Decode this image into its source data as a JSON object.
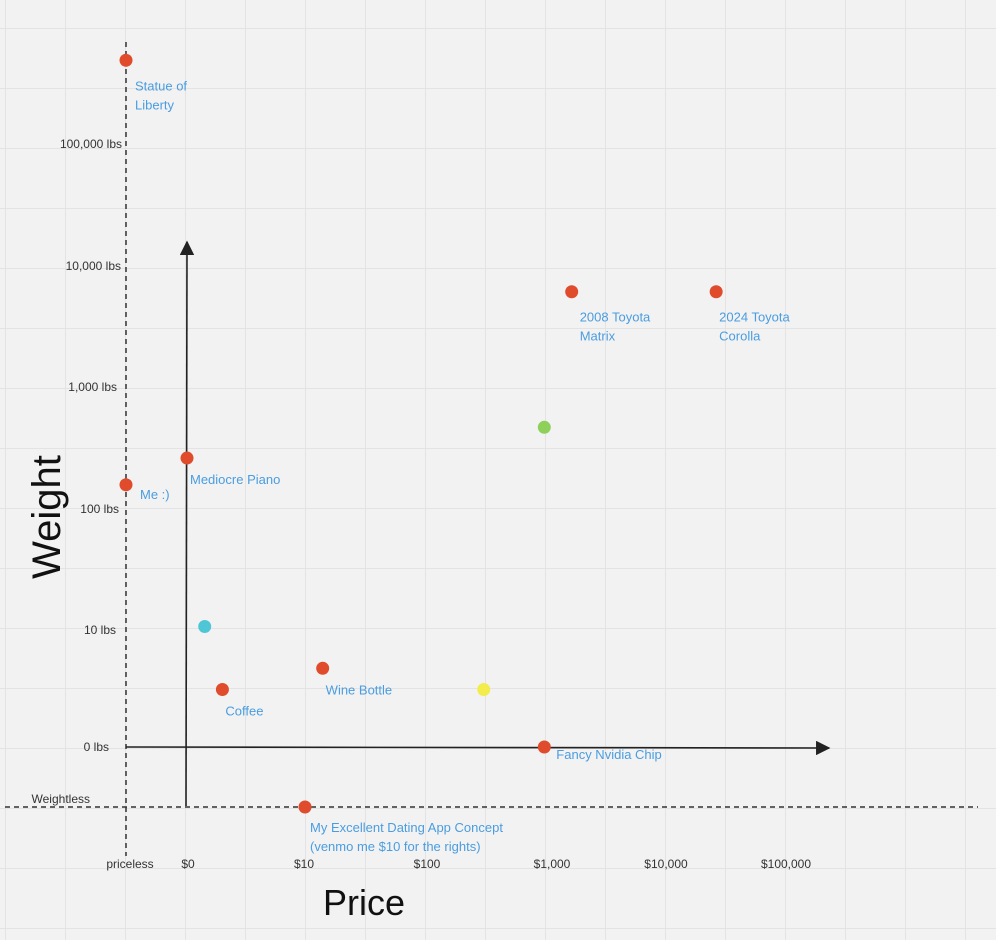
{
  "chart_data": {
    "type": "scatter",
    "xlabel": "Price",
    "ylabel": "Weight",
    "x_scale": "log",
    "y_scale": "log",
    "x_ticks": [
      "priceless",
      "$0",
      "$10",
      "$100",
      "$1,000",
      "$10,000",
      "$100,000"
    ],
    "y_ticks": [
      "Weightless",
      "0 lbs",
      "10 lbs",
      "100 lbs",
      "1,000 lbs",
      "10,000 lbs",
      "100,000 lbs"
    ],
    "points": [
      {
        "x": "priceless",
        "y": 500000,
        "label": [
          "Statue of",
          "Liberty"
        ],
        "color": "#e04b2c"
      },
      {
        "x": 1600,
        "y": 6000,
        "label": [
          "2008 Toyota",
          "Matrix"
        ],
        "color": "#e04b2c"
      },
      {
        "x": 25000,
        "y": 6000,
        "label": [
          "2024 Toyota",
          "Corolla"
        ],
        "color": "#e04b2c"
      },
      {
        "x": 950,
        "y": 450,
        "label": [],
        "color": "#8ed05a"
      },
      {
        "x": 0,
        "y": 250,
        "label": [
          "Mediocre Piano"
        ],
        "color": "#e04b2c"
      },
      {
        "x": "priceless",
        "y": 150,
        "label": [
          "Me :)"
        ],
        "color": "#e04b2c"
      },
      {
        "x": 1.5,
        "y": 10,
        "label": [],
        "color": "#4fc6d6"
      },
      {
        "x": 3,
        "y": 3,
        "label": [
          "Coffee"
        ],
        "color": "#e04b2c"
      },
      {
        "x": 14,
        "y": 4.5,
        "label": [
          "Wine Bottle"
        ],
        "color": "#e04b2c"
      },
      {
        "x": 300,
        "y": 3,
        "label": [],
        "color": "#f2ec4d"
      },
      {
        "x": 950,
        "y": 1,
        "label": [
          "Fancy Nvidia Chip"
        ],
        "color": "#e04b2c"
      },
      {
        "x": 10,
        "y": "Weightless",
        "label": [
          "My Excellent Dating App Concept",
          "(venmo me $10 for the rights)"
        ],
        "color": "#e04b2c"
      }
    ]
  }
}
